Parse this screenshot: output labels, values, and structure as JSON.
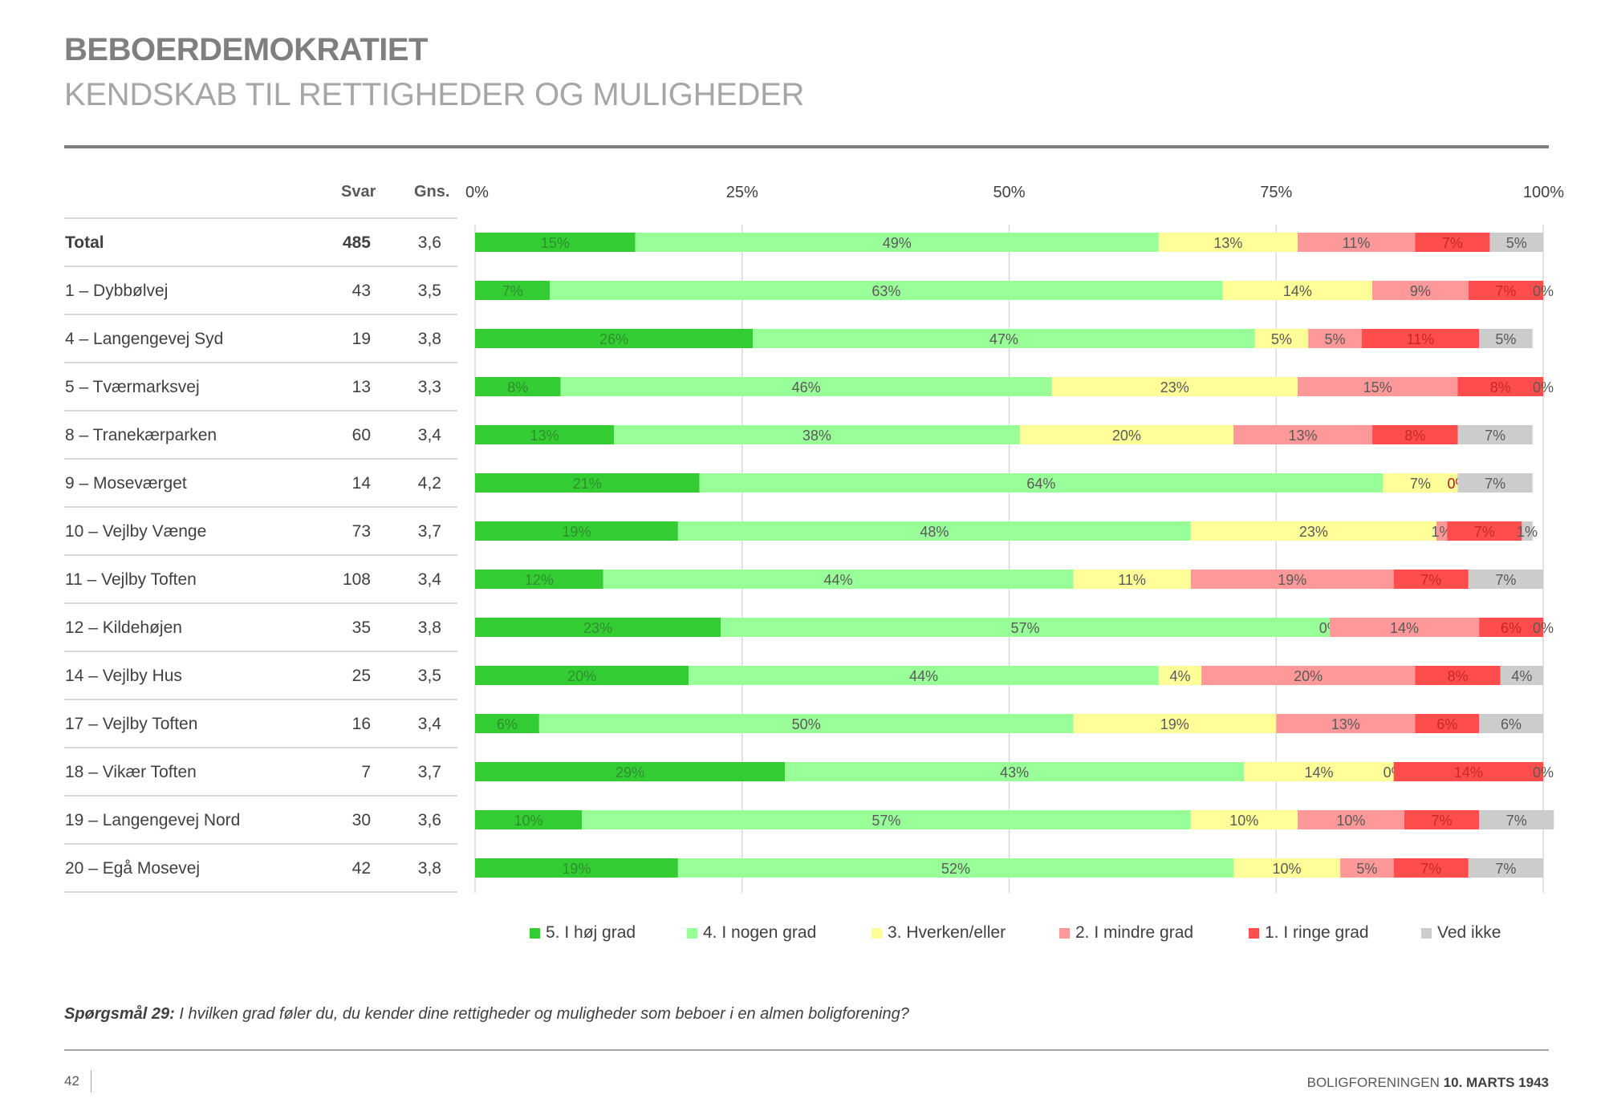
{
  "header": {
    "title": "BEBOERDEMOKRATIET",
    "subtitle": "KENDSKAB TIL RETTIGHEDER OG MULIGHEDER"
  },
  "table": {
    "col_svar": "Svar",
    "col_gns": "Gns."
  },
  "chart_data": {
    "type": "bar",
    "orientation": "horizontal",
    "stacked": true,
    "percent_stacked": true,
    "x_ticks": [
      "0%",
      "25%",
      "50%",
      "75%",
      "100%"
    ],
    "xlim": [
      0,
      100
    ],
    "grid": true,
    "legend_position": "bottom",
    "categories": [
      "Total",
      "1 – Dybbølvej",
      "4 – Langengevej Syd",
      "5 – Tværmarksvej",
      "8 – Tranekærparken",
      "9 – Moseværget",
      "10 – Vejlby Vænge",
      "11 – Vejlby Toften",
      "12 – Kildehøjen",
      "14 – Vejlby Hus",
      "17 – Vejlby Toften",
      "18 – Vikær Toften",
      "19 – Langengevej Nord",
      "20 – Egå Mosevej"
    ],
    "svar": [
      "485",
      "43",
      "19",
      "13",
      "60",
      "14",
      "73",
      "108",
      "35",
      "25",
      "16",
      "7",
      "30",
      "42"
    ],
    "gns": [
      "3,6",
      "3,5",
      "3,8",
      "3,3",
      "3,4",
      "4,2",
      "3,7",
      "3,4",
      "3,8",
      "3,5",
      "3,4",
      "3,7",
      "3,6",
      "3,8"
    ],
    "series": [
      {
        "name": "5. I høj grad",
        "color": "#33cc33",
        "label_color": "#2f8f2f",
        "values": [
          15,
          7,
          26,
          8,
          13,
          21,
          19,
          12,
          23,
          20,
          6,
          29,
          10,
          19
        ]
      },
      {
        "name": "4. I nogen grad",
        "color": "#99ff99",
        "label_color": "#595959",
        "values": [
          49,
          63,
          47,
          46,
          38,
          64,
          48,
          44,
          57,
          44,
          50,
          43,
          57,
          52
        ]
      },
      {
        "name": "3. Hverken/eller",
        "color": "#ffff99",
        "label_color": "#595959",
        "values": [
          13,
          14,
          5,
          23,
          20,
          7,
          23,
          11,
          0,
          4,
          19,
          14,
          10,
          10
        ]
      },
      {
        "name": "2. I mindre grad",
        "color": "#ff9999",
        "label_color": "#595959",
        "values": [
          11,
          9,
          5,
          15,
          13,
          0,
          1,
          19,
          14,
          20,
          13,
          0,
          10,
          5
        ]
      },
      {
        "name": "1. I ringe grad",
        "color": "#ff4d4d",
        "label_color": "#c62828",
        "values": [
          7,
          7,
          11,
          8,
          8,
          0,
          7,
          7,
          6,
          8,
          6,
          14,
          7,
          7
        ]
      },
      {
        "name": "Ved ikke",
        "color": "#cccccc",
        "label_color": "#595959",
        "values": [
          5,
          0,
          5,
          0,
          7,
          7,
          1,
          7,
          0,
          4,
          6,
          0,
          7,
          7
        ]
      }
    ]
  },
  "question": {
    "label": "Spørgsmål 29:",
    "text": " I hvilken grad føler du, du kender dine rettigheder og muligheder som beboer i en almen boligforening?"
  },
  "footer": {
    "page_number": "42",
    "org": "BOLIGFORENINGEN ",
    "date": "10. MARTS 1943"
  }
}
